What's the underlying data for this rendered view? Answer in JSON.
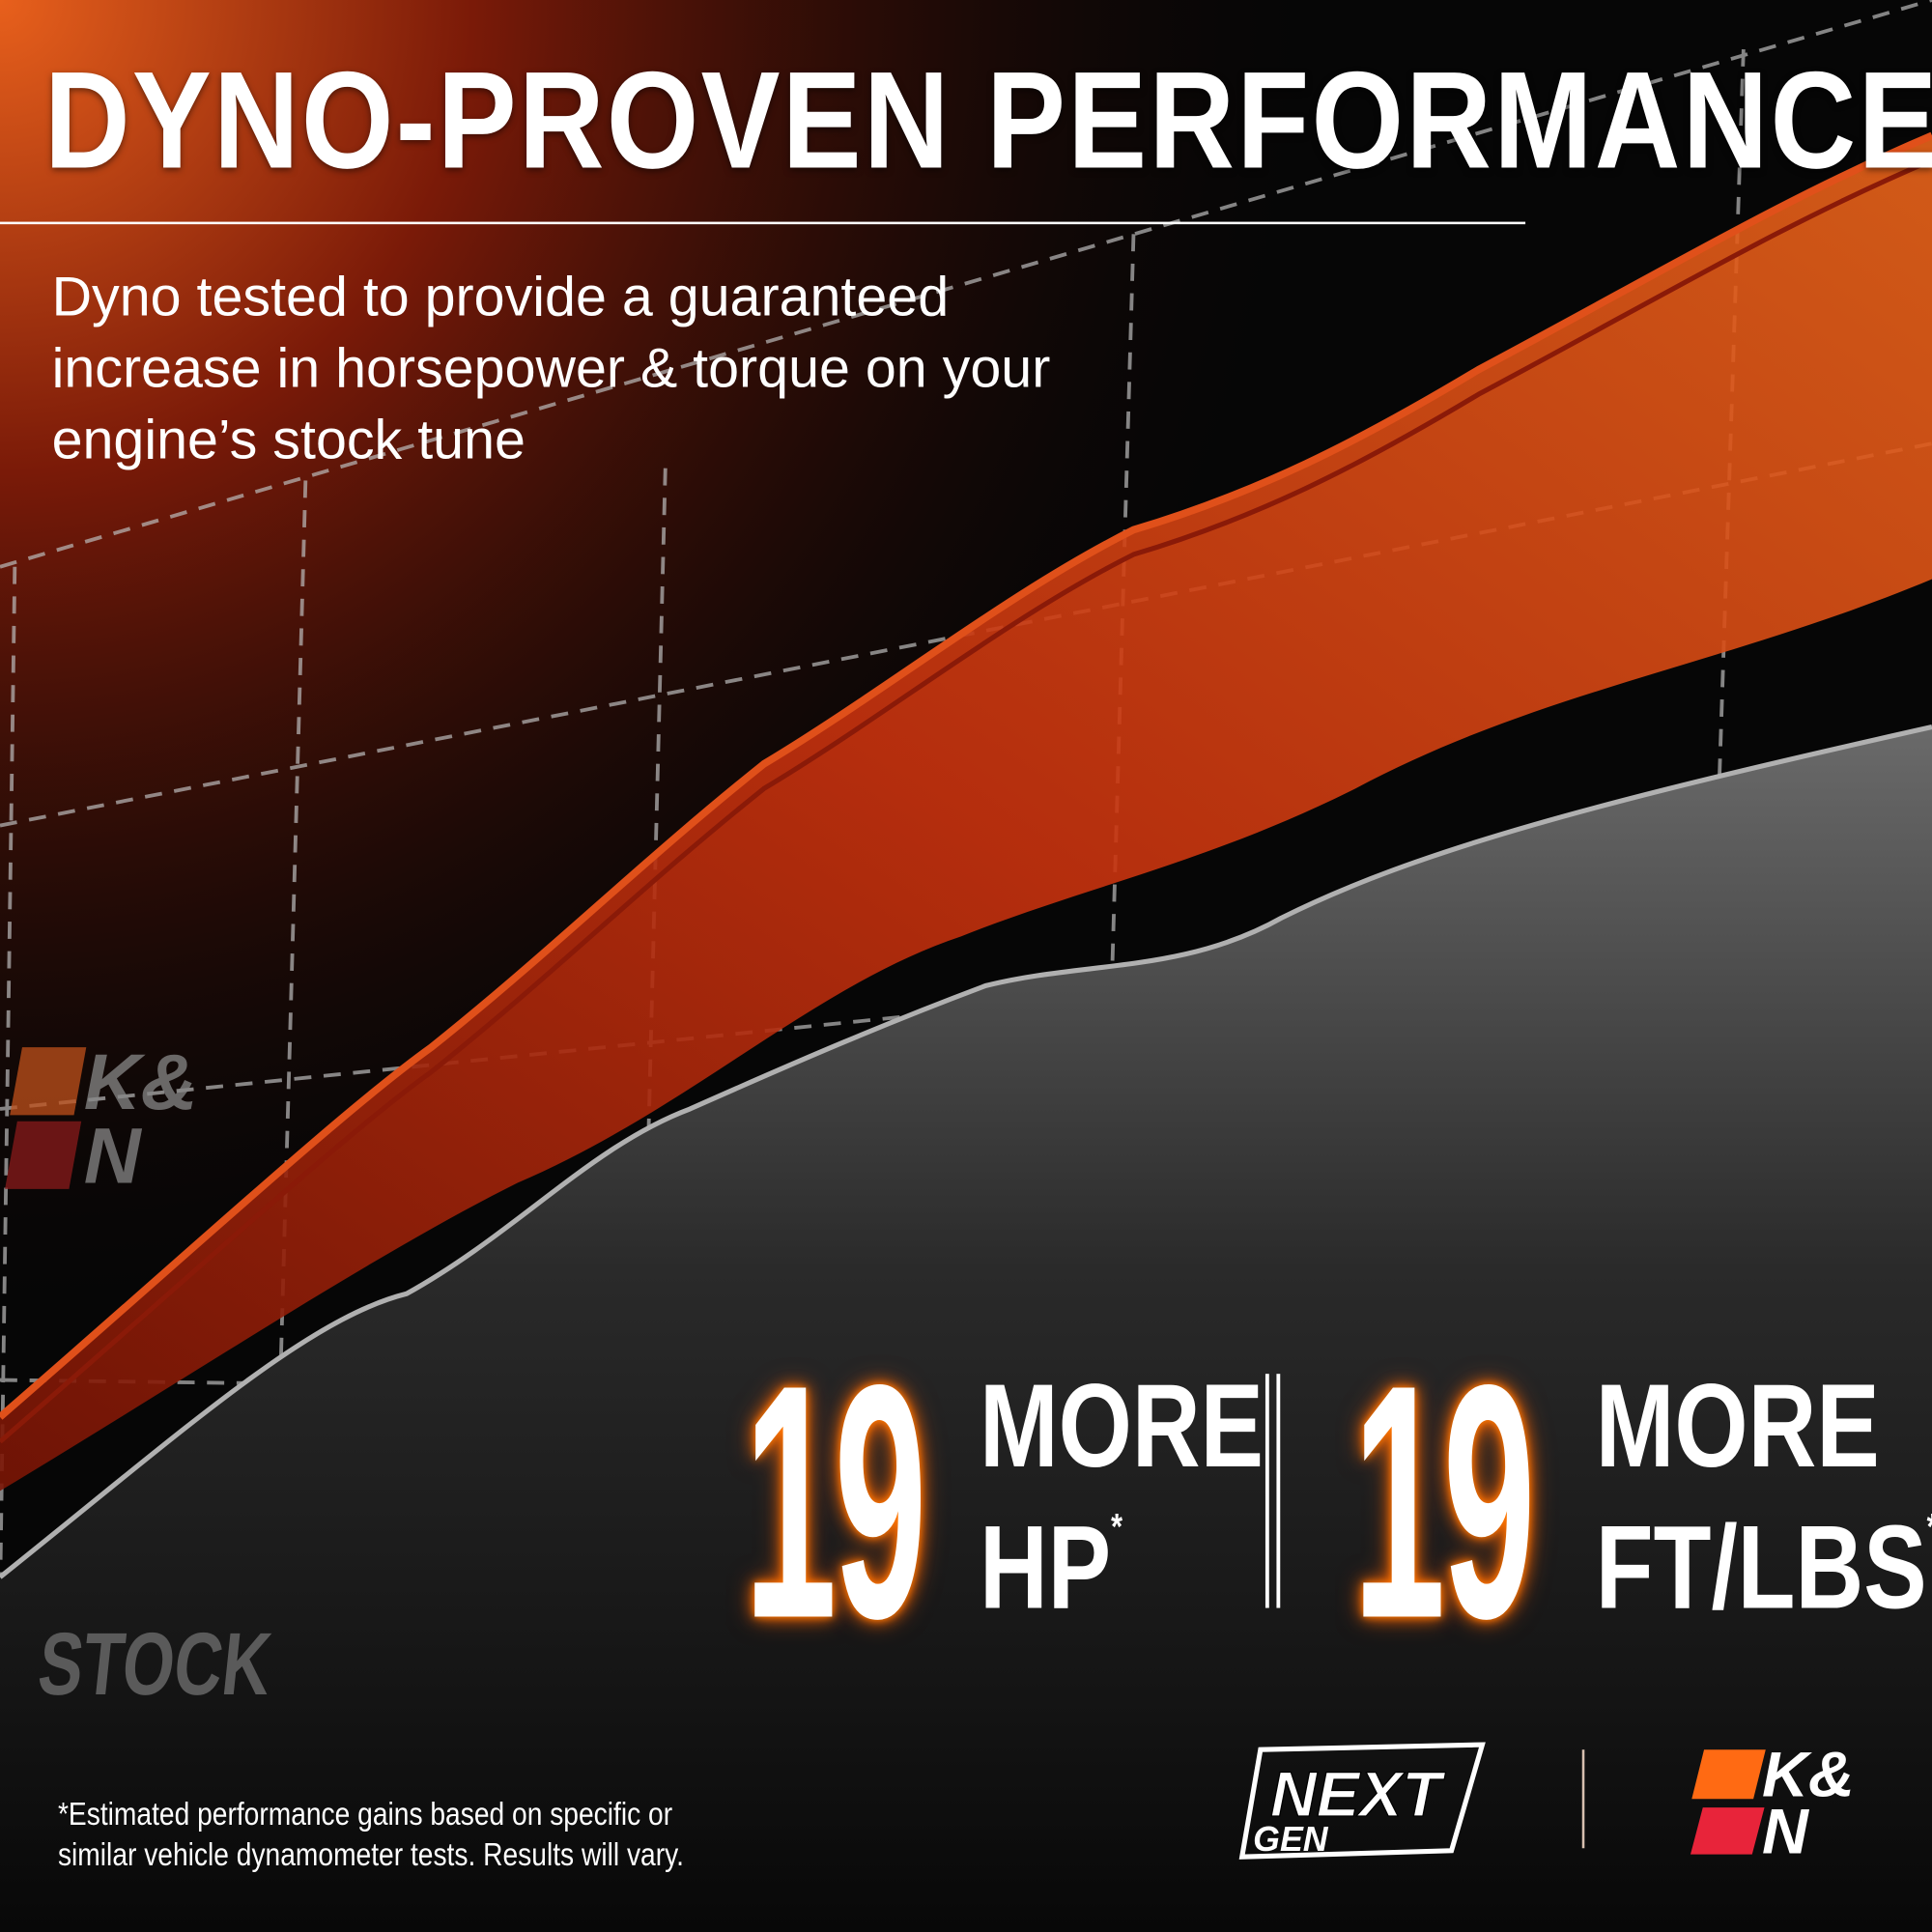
{
  "headline": "DYNO-PROVEN PERFORMANCE",
  "subheadline": "Dyno tested to provide a guaranteed increase in horsepower & torque on your engine’s stock tune",
  "stats": [
    {
      "value": "19",
      "line1": "MORE",
      "line2": "HP",
      "mark": "*"
    },
    {
      "value": "19",
      "line1": "MORE",
      "line2": "FT/LBS",
      "mark": "*"
    }
  ],
  "curve_label": "STOCK",
  "footnote": "*Estimated performance gains based on specific or similar vehicle dynamometer tests. Results will vary.",
  "logos": {
    "nextgen": "NEXT GEN",
    "kn": "K&N"
  },
  "colors": {
    "accent_orange": "#ff6a13",
    "accent_red": "#e8243a",
    "band_red": "#c8320e",
    "stock_gray": "#8a8a8a"
  }
}
